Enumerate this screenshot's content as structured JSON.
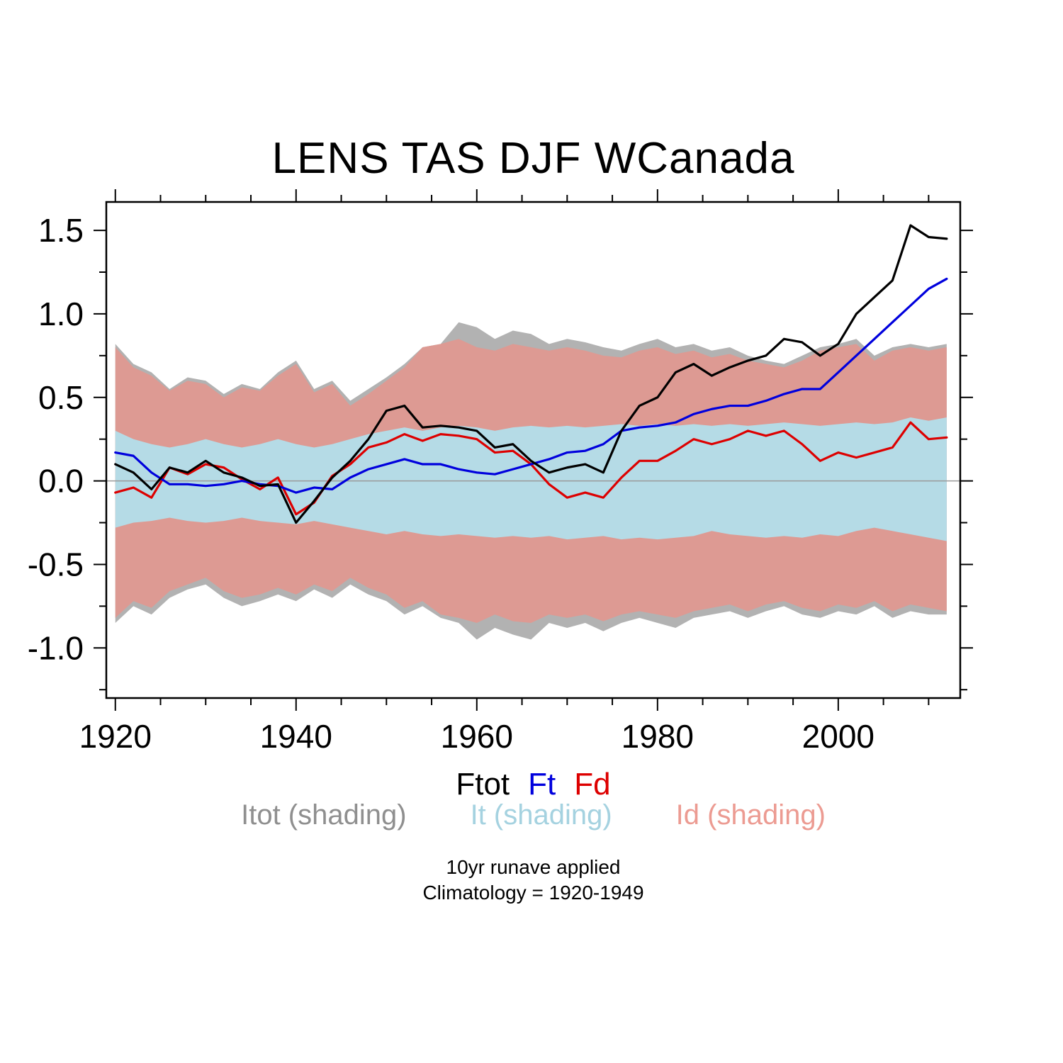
{
  "chart_data": {
    "type": "line",
    "title": "LENS TAS DJF WCanada",
    "xlabel": "",
    "ylabel": "",
    "xlim": [
      1919,
      2013.5
    ],
    "ylim": [
      -1.3,
      1.67
    ],
    "grid": false,
    "zero_line_color": "#9a9a9a",
    "x_ticks": {
      "major": [
        1920,
        1940,
        1960,
        1980,
        2000
      ],
      "labels": [
        "1920",
        "1940",
        "1960",
        "1980",
        "2000"
      ],
      "minor_step": 5
    },
    "y_ticks": {
      "major": [
        -1.0,
        -0.5,
        0.0,
        0.5,
        1.0,
        1.5
      ],
      "labels": [
        "-1.0",
        "-0.5",
        "0.0",
        "0.5",
        "1.0",
        "1.5"
      ],
      "minor_step": 0.25
    },
    "x": [
      1920,
      1922,
      1924,
      1926,
      1928,
      1930,
      1932,
      1934,
      1936,
      1938,
      1940,
      1942,
      1944,
      1946,
      1948,
      1950,
      1952,
      1954,
      1956,
      1958,
      1960,
      1962,
      1964,
      1966,
      1968,
      1970,
      1972,
      1974,
      1976,
      1978,
      1980,
      1982,
      1984,
      1986,
      1988,
      1990,
      1992,
      1994,
      1996,
      1998,
      2000,
      2002,
      2004,
      2006,
      2008,
      2010,
      2012
    ],
    "bands": [
      {
        "name": "Itot",
        "legend_label": "Itot (shading)",
        "color": "#b2b2b2",
        "upper": [
          0.82,
          0.7,
          0.65,
          0.55,
          0.62,
          0.6,
          0.52,
          0.58,
          0.55,
          0.65,
          0.72,
          0.55,
          0.6,
          0.48,
          0.55,
          0.62,
          0.7,
          0.8,
          0.82,
          0.95,
          0.92,
          0.85,
          0.9,
          0.88,
          0.82,
          0.85,
          0.83,
          0.8,
          0.78,
          0.82,
          0.85,
          0.8,
          0.82,
          0.78,
          0.8,
          0.75,
          0.72,
          0.7,
          0.75,
          0.8,
          0.82,
          0.85,
          0.75,
          0.8,
          0.82,
          0.8,
          0.82
        ],
        "lower": [
          -0.85,
          -0.75,
          -0.8,
          -0.7,
          -0.65,
          -0.62,
          -0.7,
          -0.75,
          -0.72,
          -0.68,
          -0.72,
          -0.65,
          -0.7,
          -0.62,
          -0.68,
          -0.72,
          -0.8,
          -0.75,
          -0.82,
          -0.85,
          -0.95,
          -0.88,
          -0.92,
          -0.95,
          -0.85,
          -0.88,
          -0.85,
          -0.9,
          -0.85,
          -0.82,
          -0.85,
          -0.88,
          -0.82,
          -0.8,
          -0.78,
          -0.82,
          -0.78,
          -0.75,
          -0.8,
          -0.82,
          -0.78,
          -0.8,
          -0.75,
          -0.82,
          -0.78,
          -0.8,
          -0.8
        ]
      },
      {
        "name": "Id",
        "legend_label": "Id (shading)",
        "color": "#dd9a93",
        "upper": [
          0.8,
          0.68,
          0.63,
          0.54,
          0.6,
          0.58,
          0.5,
          0.56,
          0.54,
          0.63,
          0.7,
          0.53,
          0.58,
          0.45,
          0.52,
          0.6,
          0.68,
          0.8,
          0.82,
          0.85,
          0.8,
          0.78,
          0.82,
          0.8,
          0.78,
          0.8,
          0.78,
          0.75,
          0.74,
          0.78,
          0.8,
          0.76,
          0.78,
          0.74,
          0.76,
          0.72,
          0.7,
          0.68,
          0.72,
          0.78,
          0.8,
          0.82,
          0.72,
          0.78,
          0.8,
          0.78,
          0.8
        ],
        "lower": [
          -0.82,
          -0.72,
          -0.76,
          -0.66,
          -0.62,
          -0.58,
          -0.66,
          -0.7,
          -0.68,
          -0.64,
          -0.68,
          -0.62,
          -0.66,
          -0.58,
          -0.64,
          -0.68,
          -0.76,
          -0.72,
          -0.8,
          -0.82,
          -0.85,
          -0.8,
          -0.84,
          -0.85,
          -0.8,
          -0.82,
          -0.8,
          -0.84,
          -0.8,
          -0.78,
          -0.8,
          -0.82,
          -0.78,
          -0.76,
          -0.74,
          -0.78,
          -0.74,
          -0.72,
          -0.76,
          -0.78,
          -0.74,
          -0.76,
          -0.72,
          -0.78,
          -0.74,
          -0.76,
          -0.78
        ]
      },
      {
        "name": "It",
        "legend_label": "It (shading)",
        "color": "#b5dbe6",
        "upper": [
          0.3,
          0.25,
          0.22,
          0.2,
          0.22,
          0.25,
          0.22,
          0.2,
          0.22,
          0.25,
          0.22,
          0.2,
          0.22,
          0.25,
          0.28,
          0.3,
          0.32,
          0.3,
          0.32,
          0.33,
          0.32,
          0.3,
          0.32,
          0.33,
          0.32,
          0.33,
          0.32,
          0.33,
          0.34,
          0.33,
          0.34,
          0.33,
          0.34,
          0.33,
          0.34,
          0.33,
          0.34,
          0.35,
          0.34,
          0.33,
          0.34,
          0.35,
          0.34,
          0.35,
          0.38,
          0.36,
          0.38
        ],
        "lower": [
          -0.28,
          -0.25,
          -0.24,
          -0.22,
          -0.24,
          -0.25,
          -0.24,
          -0.22,
          -0.24,
          -0.25,
          -0.26,
          -0.24,
          -0.26,
          -0.28,
          -0.3,
          -0.32,
          -0.3,
          -0.32,
          -0.33,
          -0.32,
          -0.33,
          -0.34,
          -0.33,
          -0.34,
          -0.33,
          -0.35,
          -0.34,
          -0.33,
          -0.35,
          -0.34,
          -0.35,
          -0.34,
          -0.33,
          -0.3,
          -0.32,
          -0.33,
          -0.34,
          -0.33,
          -0.34,
          -0.32,
          -0.33,
          -0.3,
          -0.28,
          -0.3,
          -0.32,
          -0.34,
          -0.36
        ]
      }
    ],
    "series": [
      {
        "name": "Fd",
        "color": "#dd0000",
        "values": [
          -0.07,
          -0.04,
          -0.1,
          0.08,
          0.04,
          0.1,
          0.08,
          0.01,
          -0.05,
          0.02,
          -0.2,
          -0.13,
          0.03,
          0.1,
          0.2,
          0.23,
          0.28,
          0.24,
          0.28,
          0.27,
          0.25,
          0.17,
          0.18,
          0.1,
          -0.02,
          -0.1,
          -0.07,
          -0.1,
          0.02,
          0.12,
          0.12,
          0.18,
          0.25,
          0.22,
          0.25,
          0.3,
          0.27,
          0.3,
          0.22,
          0.12,
          0.17,
          0.14,
          0.17,
          0.2,
          0.35,
          0.25,
          0.26
        ]
      },
      {
        "name": "Ft",
        "color": "#0000dd",
        "values": [
          0.17,
          0.15,
          0.05,
          -0.02,
          -0.02,
          -0.03,
          -0.02,
          0.0,
          -0.02,
          -0.03,
          -0.07,
          -0.04,
          -0.05,
          0.02,
          0.07,
          0.1,
          0.13,
          0.1,
          0.1,
          0.07,
          0.05,
          0.04,
          0.07,
          0.1,
          0.13,
          0.17,
          0.18,
          0.22,
          0.3,
          0.32,
          0.33,
          0.35,
          0.4,
          0.43,
          0.45,
          0.45,
          0.48,
          0.52,
          0.55,
          0.55,
          0.65,
          0.75,
          0.85,
          0.95,
          1.05,
          1.15,
          1.21
        ]
      },
      {
        "name": "Ftot",
        "color": "#000000",
        "values": [
          0.1,
          0.05,
          -0.05,
          0.08,
          0.05,
          0.12,
          0.05,
          0.02,
          -0.03,
          -0.02,
          -0.25,
          -0.12,
          0.02,
          0.12,
          0.25,
          0.42,
          0.45,
          0.32,
          0.33,
          0.32,
          0.3,
          0.2,
          0.22,
          0.12,
          0.05,
          0.08,
          0.1,
          0.05,
          0.3,
          0.45,
          0.5,
          0.65,
          0.7,
          0.63,
          0.68,
          0.72,
          0.75,
          0.85,
          0.83,
          0.75,
          0.82,
          1.0,
          1.1,
          1.2,
          1.53,
          1.46,
          1.45
        ]
      }
    ],
    "legend_position": "below"
  },
  "legend": {
    "row1": [
      {
        "label": "Ftot",
        "color": "#000000"
      },
      {
        "label": "Ft",
        "color": "#0000dd"
      },
      {
        "label": "Fd",
        "color": "#dd0000"
      }
    ],
    "row2": [
      {
        "label": "Itot (shading)",
        "color": "#8f8f8f"
      },
      {
        "label": "It (shading)",
        "color": "#a5d2e0"
      },
      {
        "label": "Id (shading)",
        "color": "#ec9b92"
      }
    ]
  },
  "footnotes": {
    "line1": "10yr runave applied",
    "line2": "Climatology = 1920-1949"
  }
}
